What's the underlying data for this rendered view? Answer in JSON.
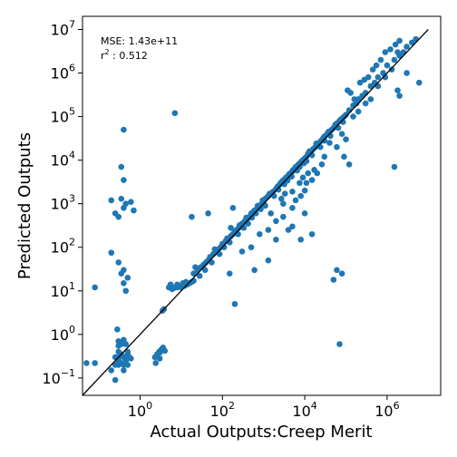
{
  "chart_data": {
    "type": "scatter",
    "xlabel": "Actual Outputs:Creep Merit",
    "ylabel": "Predicted Outputs",
    "x_scale": "log",
    "y_scale": "log",
    "xlim": [
      0.04,
      20000000
    ],
    "ylim": [
      0.04,
      20000000
    ],
    "x_ticks": [
      {
        "value": 1,
        "base": "10",
        "exp": "0"
      },
      {
        "value": 100,
        "base": "10",
        "exp": "2"
      },
      {
        "value": 10000,
        "base": "10",
        "exp": "4"
      },
      {
        "value": 1000000,
        "base": "10",
        "exp": "6"
      }
    ],
    "y_ticks": [
      {
        "value": 0.1,
        "base": "10",
        "exp": "−1"
      },
      {
        "value": 1,
        "base": "10",
        "exp": "0"
      },
      {
        "value": 10,
        "base": "10",
        "exp": "1"
      },
      {
        "value": 100,
        "base": "10",
        "exp": "2"
      },
      {
        "value": 1000,
        "base": "10",
        "exp": "3"
      },
      {
        "value": 10000,
        "base": "10",
        "exp": "4"
      },
      {
        "value": 100000,
        "base": "10",
        "exp": "5"
      },
      {
        "value": 1000000,
        "base": "10",
        "exp": "6"
      },
      {
        "value": 10000000,
        "base": "10",
        "exp": "7"
      }
    ],
    "annotation": {
      "mse_text": "MSE: 1.43e+11",
      "r2_prefix": "r",
      "r2_sup": "2",
      "r2_suffix": " : 0.512"
    },
    "reference_line": {
      "from": [
        0.04,
        0.04
      ],
      "to": [
        10000000,
        10000000
      ]
    },
    "colors": {
      "points": "#1f77b4",
      "line": "#000000"
    },
    "points": [
      [
        0.05,
        0.22
      ],
      [
        0.08,
        0.22
      ],
      [
        0.25,
        0.09
      ],
      [
        0.2,
        0.15
      ],
      [
        0.25,
        0.2
      ],
      [
        0.3,
        0.25
      ],
      [
        0.35,
        0.22
      ],
      [
        0.4,
        0.3
      ],
      [
        0.45,
        0.25
      ],
      [
        0.5,
        0.2
      ],
      [
        0.3,
        0.4
      ],
      [
        0.35,
        0.35
      ],
      [
        0.55,
        0.3
      ],
      [
        0.6,
        0.28
      ],
      [
        0.28,
        1.3
      ],
      [
        0.4,
        0.15
      ],
      [
        0.3,
        0.55
      ],
      [
        0.3,
        0.7
      ],
      [
        0.35,
        0.6
      ],
      [
        0.4,
        0.75
      ],
      [
        0.5,
        0.35
      ],
      [
        0.45,
        0.6
      ],
      [
        0.3,
        0.2
      ],
      [
        0.25,
        0.3
      ],
      [
        0.4,
        0.2
      ],
      [
        0.5,
        0.4
      ],
      [
        0.3,
        0.3
      ],
      [
        2.3,
        0.3
      ],
      [
        2.6,
        0.35
      ],
      [
        2.9,
        0.4
      ],
      [
        3.3,
        0.45
      ],
      [
        3.6,
        0.5
      ],
      [
        2.4,
        0.22
      ],
      [
        3.0,
        0.28
      ],
      [
        4.0,
        0.42
      ],
      [
        3.0,
        0.38
      ],
      [
        3.5,
        3.5
      ],
      [
        3.8,
        3.8
      ],
      [
        5,
        12
      ],
      [
        6,
        11
      ],
      [
        7,
        12
      ],
      [
        8,
        12
      ],
      [
        9,
        13
      ],
      [
        10,
        12
      ],
      [
        11,
        13
      ],
      [
        12,
        13
      ],
      [
        14,
        14
      ],
      [
        16,
        15
      ],
      [
        18,
        16
      ],
      [
        20,
        17
      ],
      [
        5.5,
        14
      ],
      [
        8,
        14
      ],
      [
        11,
        15
      ],
      [
        13,
        16
      ],
      [
        6.5,
        11.5
      ],
      [
        0.08,
        12
      ],
      [
        0.2,
        75
      ],
      [
        0.3,
        45
      ],
      [
        0.35,
        25
      ],
      [
        0.4,
        15
      ],
      [
        0.45,
        10
      ],
      [
        0.4,
        30
      ],
      [
        0.5,
        20
      ],
      [
        0.2,
        1200
      ],
      [
        0.25,
        600
      ],
      [
        0.3,
        500
      ],
      [
        0.35,
        1300
      ],
      [
        0.4,
        800
      ],
      [
        0.45,
        1000
      ],
      [
        0.6,
        1100
      ],
      [
        0.7,
        700
      ],
      [
        0.4,
        3500
      ],
      [
        0.4,
        50000
      ],
      [
        0.35,
        7000
      ],
      [
        7,
        120000
      ],
      [
        20,
        25
      ],
      [
        25,
        30
      ],
      [
        30,
        35
      ],
      [
        35,
        40
      ],
      [
        40,
        45
      ],
      [
        45,
        50
      ],
      [
        50,
        60
      ],
      [
        60,
        70
      ],
      [
        70,
        80
      ],
      [
        80,
        90
      ],
      [
        90,
        100
      ],
      [
        100,
        120
      ],
      [
        120,
        140
      ],
      [
        140,
        160
      ],
      [
        160,
        180
      ],
      [
        180,
        200
      ],
      [
        200,
        230
      ],
      [
        220,
        250
      ],
      [
        250,
        280
      ],
      [
        280,
        320
      ],
      [
        300,
        350
      ],
      [
        350,
        400
      ],
      [
        400,
        450
      ],
      [
        450,
        500
      ],
      [
        500,
        600
      ],
      [
        600,
        700
      ],
      [
        700,
        800
      ],
      [
        800,
        900
      ],
      [
        900,
        1000
      ],
      [
        22,
        35
      ],
      [
        28,
        22
      ],
      [
        38,
        30
      ],
      [
        55,
        45
      ],
      [
        65,
        90
      ],
      [
        85,
        70
      ],
      [
        110,
        100
      ],
      [
        130,
        160
      ],
      [
        150,
        130
      ],
      [
        190,
        210
      ],
      [
        240,
        200
      ],
      [
        260,
        320
      ],
      [
        330,
        280
      ],
      [
        380,
        480
      ],
      [
        420,
        350
      ],
      [
        520,
        480
      ],
      [
        560,
        650
      ],
      [
        650,
        600
      ],
      [
        720,
        900
      ],
      [
        850,
        750
      ],
      [
        950,
        1200
      ],
      [
        1000,
        1100
      ],
      [
        1100,
        1300
      ],
      [
        1200,
        1400
      ],
      [
        1300,
        1500
      ],
      [
        1500,
        1700
      ],
      [
        1700,
        1900
      ],
      [
        2000,
        2200
      ],
      [
        2200,
        2500
      ],
      [
        2500,
        2800
      ],
      [
        2800,
        3200
      ],
      [
        3000,
        3500
      ],
      [
        3500,
        4000
      ],
      [
        4000,
        4500
      ],
      [
        4500,
        5000
      ],
      [
        5000,
        5500
      ],
      [
        5500,
        6000
      ],
      [
        6000,
        7000
      ],
      [
        7000,
        8000
      ],
      [
        8000,
        9000
      ],
      [
        9000,
        10000
      ],
      [
        1100,
        900
      ],
      [
        1400,
        1700
      ],
      [
        1800,
        1500
      ],
      [
        2300,
        2100
      ],
      [
        2600,
        3000
      ],
      [
        3200,
        2800
      ],
      [
        3800,
        3400
      ],
      [
        4200,
        4800
      ],
      [
        4800,
        4200
      ],
      [
        5200,
        6000
      ],
      [
        6500,
        5800
      ],
      [
        7500,
        7000
      ],
      [
        8500,
        9500
      ],
      [
        9500,
        8500
      ],
      [
        10000,
        11000
      ],
      [
        11000,
        12000
      ],
      [
        12000,
        14000
      ],
      [
        14000,
        15000
      ],
      [
        16000,
        18000
      ],
      [
        18000,
        20000
      ],
      [
        20000,
        22000
      ],
      [
        22000,
        25000
      ],
      [
        25000,
        28000
      ],
      [
        28000,
        32000
      ],
      [
        30000,
        35000
      ],
      [
        35000,
        40000
      ],
      [
        40000,
        45000
      ],
      [
        45000,
        50000
      ],
      [
        50000,
        55000
      ],
      [
        55000,
        60000
      ],
      [
        60000,
        70000
      ],
      [
        70000,
        80000
      ],
      [
        80000,
        90000
      ],
      [
        90000,
        100000
      ],
      [
        11000,
        9500
      ],
      [
        13000,
        16000
      ],
      [
        15000,
        13000
      ],
      [
        19000,
        24000
      ],
      [
        24000,
        20000
      ],
      [
        30000,
        28000
      ],
      [
        38000,
        45000
      ],
      [
        42000,
        36000
      ],
      [
        55000,
        65000
      ],
      [
        65000,
        55000
      ],
      [
        75000,
        85000
      ],
      [
        85000,
        75000
      ],
      [
        100000,
        110000
      ],
      [
        120000,
        140000
      ],
      [
        150000,
        180000
      ],
      [
        180000,
        200000
      ],
      [
        200000,
        250000
      ],
      [
        250000,
        300000
      ],
      [
        300000,
        350000
      ],
      [
        400000,
        500000
      ],
      [
        500000,
        600000
      ],
      [
        600000,
        800000
      ],
      [
        800000,
        1000000
      ],
      [
        1000000,
        1500000
      ],
      [
        1500000,
        2000000
      ],
      [
        2000000,
        2500000
      ],
      [
        2500000,
        3000000
      ],
      [
        3000000,
        4000000
      ],
      [
        4000000,
        5000000
      ],
      [
        110000,
        400000
      ],
      [
        130000,
        350000
      ],
      [
        160000,
        250000
      ],
      [
        220000,
        600000
      ],
      [
        280000,
        700000
      ],
      [
        350000,
        800000
      ],
      [
        450000,
        1200000
      ],
      [
        550000,
        1500000
      ],
      [
        700000,
        2000000
      ],
      [
        900000,
        3000000
      ],
      [
        1200000,
        3500000
      ],
      [
        1600000,
        4500000
      ],
      [
        2000000,
        5500000
      ],
      [
        1800000,
        3000000
      ],
      [
        150000,
        100000
      ],
      [
        200000,
        130000
      ],
      [
        300000,
        200000
      ],
      [
        400000,
        250000
      ],
      [
        600000,
        500000
      ],
      [
        900000,
        800000
      ],
      [
        1300000,
        1200000
      ],
      [
        1800000,
        400000
      ],
      [
        2000000,
        300000
      ],
      [
        3000000,
        1000000
      ],
      [
        5000000,
        6000000
      ],
      [
        6000000,
        600000
      ],
      [
        8000,
        1500
      ],
      [
        10000,
        2000
      ],
      [
        15000,
        3500
      ],
      [
        20000,
        5000
      ],
      [
        30000,
        12000
      ],
      [
        40000,
        25000
      ],
      [
        60000,
        20000
      ],
      [
        80000,
        40000
      ],
      [
        90000,
        12000
      ],
      [
        120000,
        8000
      ],
      [
        100000,
        30000
      ],
      [
        5000,
        800
      ],
      [
        3000,
        1000
      ],
      [
        6000,
        1200
      ],
      [
        800,
        200
      ],
      [
        1300,
        250
      ],
      [
        2000,
        400
      ],
      [
        1500,
        600
      ],
      [
        200,
        5
      ],
      [
        300,
        80
      ],
      [
        150,
        25
      ],
      [
        500,
        100
      ],
      [
        600,
        30
      ],
      [
        1300,
        50
      ],
      [
        2000,
        150
      ],
      [
        3000,
        500
      ],
      [
        5000,
        300
      ],
      [
        15000,
        200
      ],
      [
        8000,
        150
      ],
      [
        4000,
        250
      ],
      [
        10000,
        600
      ],
      [
        50000,
        18
      ],
      [
        60000,
        30
      ],
      [
        80000,
        25
      ],
      [
        70000,
        0.6
      ],
      [
        1500000,
        7000
      ],
      [
        18,
        500
      ],
      [
        45,
        600
      ],
      [
        180,
        800
      ],
      [
        160,
        280
      ],
      [
        9000,
        4000
      ],
      [
        7500,
        3000
      ],
      [
        12000,
        5000
      ],
      [
        5000,
        1900
      ],
      [
        3300,
        1700
      ],
      [
        2700,
        1300
      ],
      [
        11000,
        3000
      ],
      [
        17000,
        6000
      ],
      [
        26000,
        8000
      ]
    ]
  }
}
